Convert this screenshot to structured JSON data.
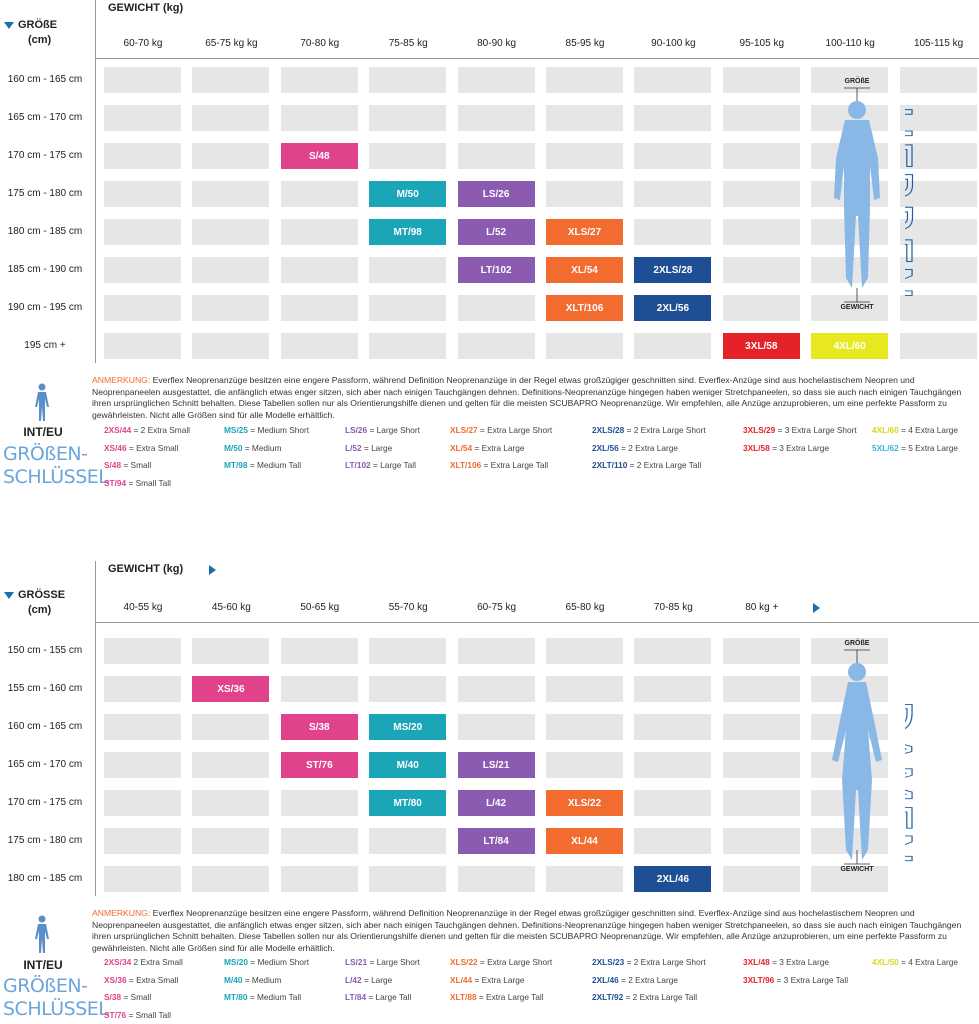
{
  "men": {
    "height_label": "GRÖßE",
    "height_unit": "(cm)",
    "weight_label": "GEWICHT (kg)",
    "columns": [
      "60-70 kg",
      "65-75 kg kg",
      "70-80 kg",
      "75-85 kg",
      "80-90 kg",
      "85-95 kg",
      "90-100 kg",
      "95-105 kg",
      "100-110 kg",
      "105-115 kg"
    ],
    "rows": [
      {
        "label": "160 cm - 165 cm",
        "cells": [
          null,
          null,
          null,
          null,
          null,
          null,
          null,
          null,
          null,
          null
        ]
      },
      {
        "label": "165 cm - 170 cm",
        "cells": [
          null,
          null,
          null,
          null,
          null,
          null,
          null,
          null,
          null,
          null
        ]
      },
      {
        "label": "170 cm - 175 cm",
        "cells": [
          null,
          null,
          {
            "text": "S/48",
            "color": "#e0438a"
          },
          null,
          null,
          null,
          null,
          null,
          null,
          null
        ]
      },
      {
        "label": "175 cm - 180 cm",
        "cells": [
          null,
          null,
          null,
          {
            "text": "M/50",
            "color": "#1ba6b8"
          },
          {
            "text": "LS/26",
            "color": "#8a5bb0"
          },
          null,
          null,
          null,
          null,
          null
        ]
      },
      {
        "label": "180 cm - 185 cm",
        "cells": [
          null,
          null,
          null,
          {
            "text": "MT/98",
            "color": "#1ba6b8"
          },
          {
            "text": "L/52",
            "color": "#8a5bb0"
          },
          {
            "text": "XLS/27",
            "color": "#f26b2f"
          },
          null,
          null,
          null,
          null
        ]
      },
      {
        "label": "185 cm - 190 cm",
        "cells": [
          null,
          null,
          null,
          null,
          {
            "text": "LT/102",
            "color": "#8a5bb0"
          },
          {
            "text": "XL/54",
            "color": "#f26b2f"
          },
          {
            "text": "2XLS/28",
            "color": "#1e4f95"
          },
          null,
          null,
          null
        ]
      },
      {
        "label": "190 cm - 195 cm",
        "cells": [
          null,
          null,
          null,
          null,
          null,
          {
            "text": "XLT/106",
            "color": "#f26b2f"
          },
          {
            "text": "2XL/56",
            "color": "#1e4f95"
          },
          null,
          null,
          null
        ]
      },
      {
        "label": "195 cm +",
        "cells": [
          null,
          null,
          null,
          null,
          null,
          null,
          null,
          {
            "text": "3XL/58",
            "color": "#e3222a"
          },
          {
            "text": "4XL/60",
            "color": "#e8e820"
          },
          null
        ]
      }
    ],
    "figure": {
      "side_label": "HERREN",
      "top_label": "GRÖßE",
      "bottom_label": "GEWICHT"
    },
    "note": {
      "label": "ANMERKUNG:",
      "text": " Everflex Neoprenanzüge besitzen eine engere Passform, während Definition Neoprenanzüge in der Regel etwas großzügiger geschnitten sind. Everflex-Anzüge sind aus hochelastischem Neopren und Neoprenpaneelen ausgestattet, die anfänglich etwas enger sitzen, sich aber nach einigen Tauchgängen dehnen. Definitions-Neoprenanzüge hingegen haben weniger Stretchpaneelen, so dass sie auch nach einigen Tauchgängen ihren ursprünglichen Schnitt behalten. Diese Tabellen sollen nur als Orientierungshilfe dienen und gelten für die meisten SCUBAPRO Neoprenanzüge. Wir empfehlen, alle Anzüge anzuprobieren, um eine perfekte Passform zu gewährleisten. Nicht alle Größen sind für alle Modelle erhältlich."
    },
    "key": {
      "title": "INT/EU",
      "subtitle": [
        "GRÖßEN-",
        "SCHLÜSSEL"
      ],
      "columns": [
        [
          {
            "code": "2XS/44",
            "text": " = 2 Extra Small",
            "color": "#e0438a"
          },
          {
            "code": "XS/46",
            "text": " = Extra Small",
            "color": "#e0438a"
          },
          {
            "code": "S/48",
            "text": " = Small",
            "color": "#e0438a"
          },
          {
            "code": "ST/94",
            "text": " = Small Tall",
            "color": "#e0438a"
          }
        ],
        [
          {
            "code": "MS/25",
            "text": " = Medium Short",
            "color": "#1ba6b8"
          },
          {
            "code": "M/50",
            "text": " = Medium",
            "color": "#1ba6b8"
          },
          {
            "code": "MT/98",
            "text": " = Medium Tall",
            "color": "#1ba6b8"
          }
        ],
        [
          {
            "code": "LS/26",
            "text": " = Large Short",
            "color": "#8a5bb0"
          },
          {
            "code": "L/52",
            "text": " = Large",
            "color": "#8a5bb0"
          },
          {
            "code": "LT/102",
            "text": " = Large Tall",
            "color": "#8a5bb0"
          }
        ],
        [
          {
            "code": "XLS/27",
            "text": " = Extra Large Short",
            "color": "#f26b2f"
          },
          {
            "code": "XL/54",
            "text": " = Extra Large",
            "color": "#f26b2f"
          },
          {
            "code": "XLT/106",
            "text": " = Extra Large Tall",
            "color": "#f26b2f"
          }
        ],
        [
          {
            "code": "2XLS/28",
            "text": " = 2 Extra Large Short",
            "color": "#1e4f95"
          },
          {
            "code": "2XL/56",
            "text": " = 2 Extra Large",
            "color": "#1e4f95"
          },
          {
            "code": "2XLT/110",
            "text": " = 2 Extra Large Tall",
            "color": "#1e4f95"
          }
        ],
        [
          {
            "code": "3XLS/29",
            "text": " = 3 Extra Large Short",
            "color": "#e3222a"
          },
          {
            "code": "3XL/58",
            "text": " = 3 Extra Large",
            "color": "#e3222a"
          }
        ],
        [
          {
            "code": "4XL/60",
            "text": " = 4 Extra Large",
            "color": "#d8d820"
          },
          {
            "code": "5XL/62",
            "text": " = 5 Extra Large",
            "color": "#35b8d8"
          }
        ]
      ]
    }
  },
  "women": {
    "height_label": "GRÖSSE",
    "height_unit": "(cm)",
    "weight_label": "GEWICHT (kg)",
    "columns": [
      "40-55 kg",
      "45-60 kg",
      "50-65 kg",
      "55-70 kg",
      "60-75 kg",
      "65-80 kg",
      "70-85 kg",
      "80 kg +"
    ],
    "rows": [
      {
        "label": "150 cm - 155 cm",
        "cells": [
          null,
          null,
          null,
          null,
          null,
          null,
          null,
          null
        ]
      },
      {
        "label": "155 cm - 160 cm",
        "cells": [
          null,
          {
            "text": "XS/36",
            "color": "#e0438a"
          },
          null,
          null,
          null,
          null,
          null,
          null
        ]
      },
      {
        "label": "160 cm - 165 cm",
        "cells": [
          null,
          null,
          {
            "text": "S/38",
            "color": "#e0438a"
          },
          {
            "text": "MS/20",
            "color": "#1ba6b8"
          },
          null,
          null,
          null,
          null
        ]
      },
      {
        "label": "165 cm - 170 cm",
        "cells": [
          null,
          null,
          {
            "text": "ST/76",
            "color": "#e0438a"
          },
          {
            "text": "M/40",
            "color": "#1ba6b8"
          },
          {
            "text": "LS/21",
            "color": "#8a5bb0"
          },
          null,
          null,
          null
        ]
      },
      {
        "label": "170 cm - 175 cm",
        "cells": [
          null,
          null,
          null,
          {
            "text": "MT/80",
            "color": "#1ba6b8"
          },
          {
            "text": "L/42",
            "color": "#8a5bb0"
          },
          {
            "text": "XLS/22",
            "color": "#f26b2f"
          },
          null,
          null
        ]
      },
      {
        "label": "175 cm - 180 cm",
        "cells": [
          null,
          null,
          null,
          null,
          {
            "text": "LT/84",
            "color": "#8a5bb0"
          },
          {
            "text": "XL/44",
            "color": "#f26b2f"
          },
          null,
          null
        ]
      },
      {
        "label": "180 cm - 185 cm",
        "cells": [
          null,
          null,
          null,
          null,
          null,
          null,
          {
            "text": "2XL/46",
            "color": "#1e4f95"
          },
          null
        ]
      }
    ],
    "figure": {
      "side_label": "DAMEN",
      "top_label": "GRÖßE",
      "bottom_label": "GEWICHT"
    },
    "note": {
      "label": "ANMERKUNG:",
      "text": " Everflex Neoprenanzüge besitzen eine engere Passform, während Definition Neoprenanzüge in der Regel etwas großzügiger geschnitten sind. Everflex-Anzüge sind aus hochelastischem Neopren und Neoprenpaneelen ausgestattet, die anfänglich etwas enger sitzen, sich aber nach einigen Tauchgängen dehnen. Definitions-Neoprenanzüge hingegen haben weniger Stretchpaneelen, so dass sie auch nach einigen Tauchgängen ihren ursprünglichen Schnitt behalten. Diese Tabellen sollen nur als Orientierungshilfe dienen und gelten für die meisten SCUBAPRO Neoprenanzüge. Wir empfehlen, alle Anzüge anzuprobieren, um eine perfekte Passform zu gewährleisten. Nicht alle Größen sind für alle Modelle erhältlich."
    },
    "key": {
      "title": "INT/EU",
      "subtitle": [
        "GRÖßEN-",
        "SCHLÜSSEL"
      ],
      "columns": [
        [
          {
            "code": "2XS/34",
            "text": " 2 Extra Small",
            "color": "#e0438a"
          },
          {
            "code": "XS/36",
            "text": " = Extra Small",
            "color": "#e0438a"
          },
          {
            "code": "S/38",
            "text": " = Small",
            "color": "#e0438a"
          },
          {
            "code": "ST/76",
            "text": " = Small Tall",
            "color": "#e0438a"
          }
        ],
        [
          {
            "code": "MS/20",
            "text": " = Medium Short",
            "color": "#1ba6b8"
          },
          {
            "code": "M/40",
            "text": " = Medium",
            "color": "#1ba6b8"
          },
          {
            "code": "MT/80",
            "text": " = Medium Tall",
            "color": "#1ba6b8"
          }
        ],
        [
          {
            "code": "LS/21",
            "text": " = Large Short",
            "color": "#8a5bb0"
          },
          {
            "code": "L/42",
            "text": " = Large",
            "color": "#8a5bb0"
          },
          {
            "code": "LT/84",
            "text": " = Large Tall",
            "color": "#8a5bb0"
          }
        ],
        [
          {
            "code": "XLS/22",
            "text": " = Extra Large Short",
            "color": "#f26b2f"
          },
          {
            "code": "XL/44",
            "text": " = Extra Large",
            "color": "#f26b2f"
          },
          {
            "code": "XLT/88",
            "text": " = Extra Large Tall",
            "color": "#f26b2f"
          }
        ],
        [
          {
            "code": "2XLS/23",
            "text": " = 2 Extra Large Short",
            "color": "#1e4f95"
          },
          {
            "code": "2XL/46",
            "text": " = 2 Extra Large",
            "color": "#1e4f95"
          },
          {
            "code": "2XLT/92",
            "text": " = 2 Extra Large Tall",
            "color": "#1e4f95"
          }
        ],
        [
          {
            "code": "3XL/48",
            "text": " = 3 Extra Large",
            "color": "#e3222a"
          },
          {
            "code": "3XLT/96",
            "text": " = 3 Extra Large Tall",
            "color": "#e3222a"
          }
        ],
        [
          {
            "code": "4XL/50",
            "text": " = 4 Extra Large",
            "color": "#d8d820"
          }
        ]
      ]
    }
  }
}
